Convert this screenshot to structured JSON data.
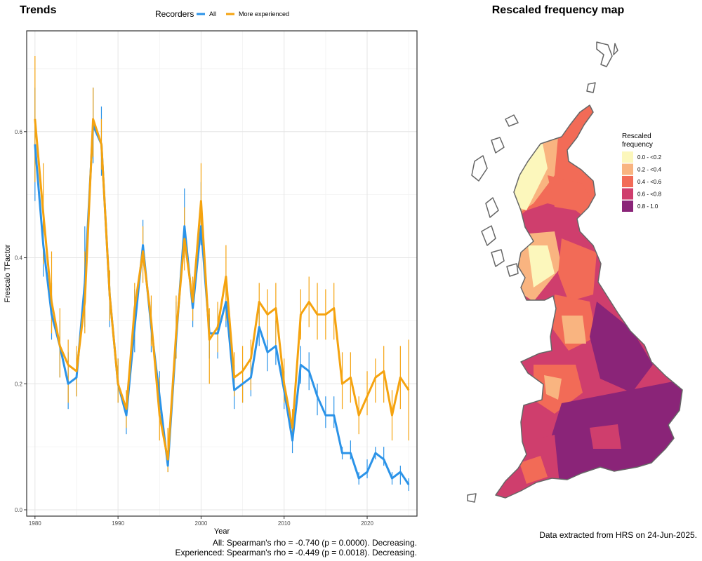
{
  "left_panel": {
    "title": "Trends",
    "legend_title": "Recorders"
  },
  "right_panel": {
    "title": "Rescaled frequency map",
    "legend_title_line1": "Rescaled",
    "legend_title_line2": "frequency",
    "legend": [
      {
        "label": "0.0 - <0.2",
        "color": "#FCF7BC"
      },
      {
        "label": "0.2 - <0.4",
        "color": "#F9B480"
      },
      {
        "label": "0.4 - <0.6",
        "color": "#F26B57"
      },
      {
        "label": "0.6 - <0.8",
        "color": "#CF3E6D"
      },
      {
        "label": "0.8 - 1.0",
        "color": "#8A2478"
      }
    ],
    "source_note": "Data extracted from HRS on 24-Jun-2025."
  },
  "stats": {
    "line1": "All: Spearman's rho = -0.740 (p = 0.0000). Decreasing.",
    "line2": "Experienced: Spearman's rho = -0.449 (p = 0.0018). Decreasing."
  },
  "chart_data": {
    "type": "line",
    "title": "Trends",
    "xlabel": "Year",
    "ylabel": "Frescalo TFactor",
    "xlim": [
      1979,
      2026
    ],
    "ylim": [
      -0.01,
      0.76
    ],
    "x_ticks": [
      1980,
      1990,
      2000,
      2010,
      2020
    ],
    "y_ticks": [
      0.0,
      0.2,
      0.4,
      0.6
    ],
    "grid": true,
    "legend_position": "top",
    "series": [
      {
        "name": "All",
        "color": "#2B93E8",
        "points": [
          {
            "x": 1980,
            "y": 0.58,
            "lo": 0.49,
            "hi": 0.67
          },
          {
            "x": 1981,
            "y": 0.42,
            "lo": 0.37,
            "hi": 0.47
          },
          {
            "x": 1982,
            "y": 0.31,
            "lo": 0.27,
            "hi": 0.36
          },
          {
            "x": 1983,
            "y": 0.26,
            "lo": 0.21,
            "hi": 0.3
          },
          {
            "x": 1984,
            "y": 0.2,
            "lo": 0.16,
            "hi": 0.25
          },
          {
            "x": 1985,
            "y": 0.21,
            "lo": 0.18,
            "hi": 0.25
          },
          {
            "x": 1986,
            "y": 0.36,
            "lo": 0.29,
            "hi": 0.45
          },
          {
            "x": 1987,
            "y": 0.61,
            "lo": 0.55,
            "hi": 0.67
          },
          {
            "x": 1988,
            "y": 0.58,
            "lo": 0.53,
            "hi": 0.64
          },
          {
            "x": 1989,
            "y": 0.34,
            "lo": 0.29,
            "hi": 0.38
          },
          {
            "x": 1990,
            "y": 0.2,
            "lo": 0.17,
            "hi": 0.24
          },
          {
            "x": 1991,
            "y": 0.15,
            "lo": 0.12,
            "hi": 0.18
          },
          {
            "x": 1992,
            "y": 0.29,
            "lo": 0.25,
            "hi": 0.35
          },
          {
            "x": 1993,
            "y": 0.42,
            "lo": 0.38,
            "hi": 0.46
          },
          {
            "x": 1994,
            "y": 0.29,
            "lo": 0.25,
            "hi": 0.33
          },
          {
            "x": 1995,
            "y": 0.18,
            "lo": 0.15,
            "hi": 0.22
          },
          {
            "x": 1996,
            "y": 0.07,
            "lo": 0.06,
            "hi": 0.11
          },
          {
            "x": 1997,
            "y": 0.27,
            "lo": 0.24,
            "hi": 0.33
          },
          {
            "x": 1998,
            "y": 0.45,
            "lo": 0.4,
            "hi": 0.51
          },
          {
            "x": 1999,
            "y": 0.32,
            "lo": 0.29,
            "hi": 0.36
          },
          {
            "x": 2000,
            "y": 0.45,
            "lo": 0.42,
            "hi": 0.52
          },
          {
            "x": 2001,
            "y": 0.28,
            "lo": 0.24,
            "hi": 0.31
          },
          {
            "x": 2002,
            "y": 0.28,
            "lo": 0.24,
            "hi": 0.32
          },
          {
            "x": 2003,
            "y": 0.33,
            "lo": 0.29,
            "hi": 0.37
          },
          {
            "x": 2004,
            "y": 0.19,
            "lo": 0.16,
            "hi": 0.23
          },
          {
            "x": 2005,
            "y": 0.2,
            "lo": 0.17,
            "hi": 0.23
          },
          {
            "x": 2006,
            "y": 0.21,
            "lo": 0.18,
            "hi": 0.24
          },
          {
            "x": 2007,
            "y": 0.29,
            "lo": 0.26,
            "hi": 0.33
          },
          {
            "x": 2008,
            "y": 0.25,
            "lo": 0.22,
            "hi": 0.27
          },
          {
            "x": 2009,
            "y": 0.26,
            "lo": 0.23,
            "hi": 0.3
          },
          {
            "x": 2010,
            "y": 0.19,
            "lo": 0.16,
            "hi": 0.22
          },
          {
            "x": 2011,
            "y": 0.11,
            "lo": 0.09,
            "hi": 0.12
          },
          {
            "x": 2012,
            "y": 0.23,
            "lo": 0.2,
            "hi": 0.26
          },
          {
            "x": 2013,
            "y": 0.22,
            "lo": 0.19,
            "hi": 0.25
          },
          {
            "x": 2014,
            "y": 0.18,
            "lo": 0.15,
            "hi": 0.2
          },
          {
            "x": 2015,
            "y": 0.15,
            "lo": 0.13,
            "hi": 0.18
          },
          {
            "x": 2016,
            "y": 0.15,
            "lo": 0.13,
            "hi": 0.18
          },
          {
            "x": 2017,
            "y": 0.09,
            "lo": 0.08,
            "hi": 0.1
          },
          {
            "x": 2018,
            "y": 0.09,
            "lo": 0.08,
            "hi": 0.11
          },
          {
            "x": 2019,
            "y": 0.05,
            "lo": 0.04,
            "hi": 0.06
          },
          {
            "x": 2020,
            "y": 0.06,
            "lo": 0.05,
            "hi": 0.08
          },
          {
            "x": 2021,
            "y": 0.09,
            "lo": 0.08,
            "hi": 0.1
          },
          {
            "x": 2022,
            "y": 0.08,
            "lo": 0.07,
            "hi": 0.1
          },
          {
            "x": 2023,
            "y": 0.05,
            "lo": 0.04,
            "hi": 0.06
          },
          {
            "x": 2024,
            "y": 0.06,
            "lo": 0.04,
            "hi": 0.07
          },
          {
            "x": 2025,
            "y": 0.04,
            "lo": 0.03,
            "hi": 0.05
          }
        ]
      },
      {
        "name": "More experienced",
        "color": "#F5A30F",
        "points": [
          {
            "x": 1980,
            "y": 0.62,
            "lo": 0.52,
            "hi": 0.72
          },
          {
            "x": 1981,
            "y": 0.47,
            "lo": 0.39,
            "hi": 0.55
          },
          {
            "x": 1982,
            "y": 0.33,
            "lo": 0.28,
            "hi": 0.41
          },
          {
            "x": 1983,
            "y": 0.26,
            "lo": 0.21,
            "hi": 0.32
          },
          {
            "x": 1984,
            "y": 0.23,
            "lo": 0.17,
            "hi": 0.27
          },
          {
            "x": 1985,
            "y": 0.22,
            "lo": 0.18,
            "hi": 0.26
          },
          {
            "x": 1986,
            "y": 0.33,
            "lo": 0.28,
            "hi": 0.41
          },
          {
            "x": 1987,
            "y": 0.62,
            "lo": 0.56,
            "hi": 0.67
          },
          {
            "x": 1988,
            "y": 0.58,
            "lo": 0.54,
            "hi": 0.62
          },
          {
            "x": 1989,
            "y": 0.34,
            "lo": 0.3,
            "hi": 0.38
          },
          {
            "x": 1990,
            "y": 0.2,
            "lo": 0.17,
            "hi": 0.24
          },
          {
            "x": 1991,
            "y": 0.16,
            "lo": 0.13,
            "hi": 0.19
          },
          {
            "x": 1992,
            "y": 0.32,
            "lo": 0.27,
            "hi": 0.36
          },
          {
            "x": 1993,
            "y": 0.41,
            "lo": 0.36,
            "hi": 0.45
          },
          {
            "x": 1994,
            "y": 0.3,
            "lo": 0.26,
            "hi": 0.34
          },
          {
            "x": 1995,
            "y": 0.15,
            "lo": 0.11,
            "hi": 0.21
          },
          {
            "x": 1996,
            "y": 0.08,
            "lo": 0.06,
            "hi": 0.13
          },
          {
            "x": 1997,
            "y": 0.28,
            "lo": 0.24,
            "hi": 0.34
          },
          {
            "x": 1998,
            "y": 0.43,
            "lo": 0.38,
            "hi": 0.48
          },
          {
            "x": 1999,
            "y": 0.33,
            "lo": 0.3,
            "hi": 0.37
          },
          {
            "x": 2000,
            "y": 0.49,
            "lo": 0.43,
            "hi": 0.55
          },
          {
            "x": 2001,
            "y": 0.27,
            "lo": 0.2,
            "hi": 0.32
          },
          {
            "x": 2002,
            "y": 0.29,
            "lo": 0.25,
            "hi": 0.33
          },
          {
            "x": 2003,
            "y": 0.37,
            "lo": 0.3,
            "hi": 0.42
          },
          {
            "x": 2004,
            "y": 0.21,
            "lo": 0.18,
            "hi": 0.25
          },
          {
            "x": 2005,
            "y": 0.22,
            "lo": 0.17,
            "hi": 0.26
          },
          {
            "x": 2006,
            "y": 0.24,
            "lo": 0.19,
            "hi": 0.27
          },
          {
            "x": 2007,
            "y": 0.33,
            "lo": 0.29,
            "hi": 0.36
          },
          {
            "x": 2008,
            "y": 0.31,
            "lo": 0.27,
            "hi": 0.35
          },
          {
            "x": 2009,
            "y": 0.32,
            "lo": 0.26,
            "hi": 0.36
          },
          {
            "x": 2010,
            "y": 0.2,
            "lo": 0.17,
            "hi": 0.24
          },
          {
            "x": 2011,
            "y": 0.13,
            "lo": 0.11,
            "hi": 0.16
          },
          {
            "x": 2012,
            "y": 0.31,
            "lo": 0.27,
            "hi": 0.35
          },
          {
            "x": 2013,
            "y": 0.33,
            "lo": 0.29,
            "hi": 0.37
          },
          {
            "x": 2014,
            "y": 0.31,
            "lo": 0.27,
            "hi": 0.36
          },
          {
            "x": 2015,
            "y": 0.31,
            "lo": 0.27,
            "hi": 0.35
          },
          {
            "x": 2016,
            "y": 0.32,
            "lo": 0.27,
            "hi": 0.36
          },
          {
            "x": 2017,
            "y": 0.2,
            "lo": 0.16,
            "hi": 0.25
          },
          {
            "x": 2018,
            "y": 0.21,
            "lo": 0.17,
            "hi": 0.25
          },
          {
            "x": 2019,
            "y": 0.15,
            "lo": 0.12,
            "hi": 0.18
          },
          {
            "x": 2020,
            "y": 0.18,
            "lo": 0.15,
            "hi": 0.22
          },
          {
            "x": 2021,
            "y": 0.21,
            "lo": 0.17,
            "hi": 0.24
          },
          {
            "x": 2022,
            "y": 0.22,
            "lo": 0.17,
            "hi": 0.26
          },
          {
            "x": 2023,
            "y": 0.15,
            "lo": 0.11,
            "hi": 0.19
          },
          {
            "x": 2024,
            "y": 0.21,
            "lo": 0.16,
            "hi": 0.26
          },
          {
            "x": 2025,
            "y": 0.19,
            "lo": 0.11,
            "hi": 0.27
          }
        ]
      }
    ]
  }
}
